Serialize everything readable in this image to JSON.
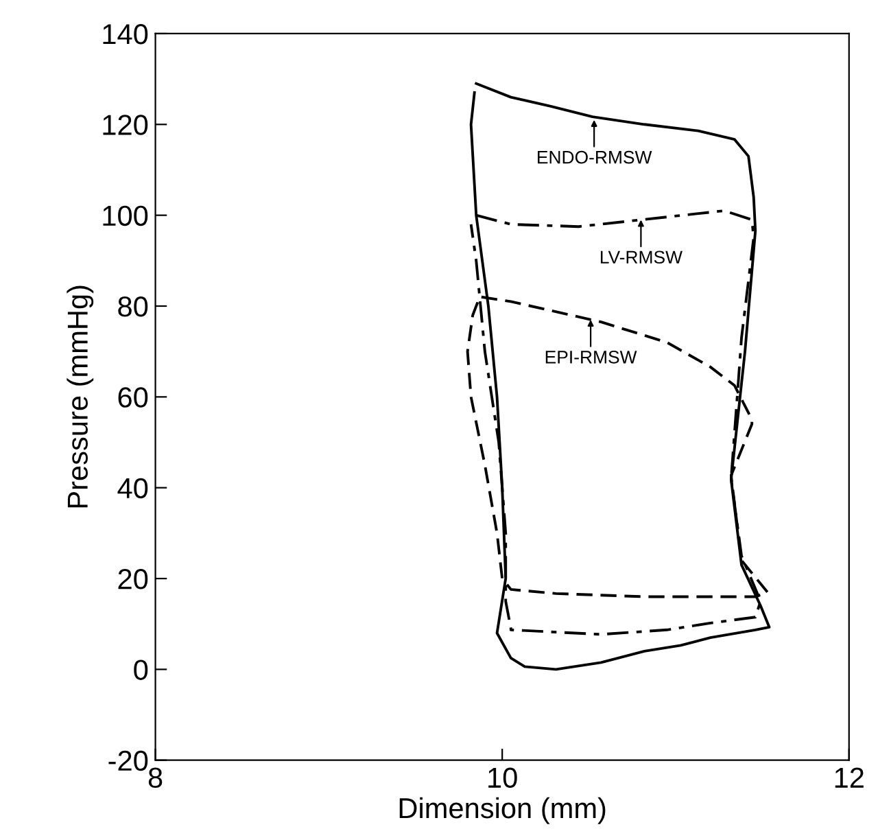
{
  "chart_data": {
    "type": "line",
    "xlabel": "Dimension (mm)",
    "ylabel": "Pressure (mmHg)",
    "xlim": [
      8,
      12
    ],
    "xticks": [
      8,
      10,
      12
    ],
    "ylim": [
      -20,
      140
    ],
    "yticks": [
      -20,
      0,
      20,
      40,
      60,
      80,
      100,
      120,
      140
    ],
    "grid": false,
    "marker": "none",
    "series": [
      {
        "color": "#000000",
        "line_style": "solid",
        "x": [
          9.85,
          10.05,
          10.28,
          10.52,
          10.82,
          11.13,
          11.34,
          11.42,
          11.45,
          11.46,
          11.4,
          11.32,
          11.38,
          11.49,
          11.54,
          11.46,
          11.2,
          11.03,
          10.82,
          10.57,
          10.31,
          10.13,
          10.05,
          9.97,
          10.02,
          10.0,
          9.97,
          9.92,
          9.85,
          9.82,
          9.84
        ],
        "values": [
          129,
          126,
          124,
          121.7,
          120,
          118.6,
          116.7,
          113,
          104,
          96.6,
          70,
          41.8,
          23,
          14,
          9.3,
          8.7,
          7,
          5.3,
          4,
          1.5,
          0,
          0.6,
          2.5,
          8,
          20,
          40,
          60,
          80,
          100,
          120,
          127
        ]
      },
      {
        "color": "#000000",
        "line_style": "dashdot",
        "x": [
          9.85,
          10.05,
          10.44,
          10.8,
          11.28,
          11.44,
          11.45,
          11.38,
          11.36,
          11.32,
          11.38,
          11.49,
          11.46,
          11.2,
          10.95,
          10.57,
          10.05,
          10.05,
          10.02,
          10.02,
          9.98,
          9.9,
          9.85,
          9.82
        ],
        "values": [
          100,
          98,
          97.5,
          99,
          101,
          99,
          95,
          73,
          62.5,
          42,
          25,
          15,
          11.5,
          10.2,
          8.7,
          7.7,
          8.7,
          9,
          15,
          30,
          50,
          70,
          90,
          98
        ]
      },
      {
        "color": "#000000",
        "line_style": "dashed",
        "x": [
          9.88,
          10.05,
          10.57,
          10.95,
          11.2,
          11.34,
          11.44,
          11.44,
          11.32,
          11.38,
          11.53,
          11.46,
          10.82,
          10.31,
          10.05,
          10.0,
          9.97,
          9.9,
          9.82,
          9.8,
          9.83,
          9.86
        ],
        "values": [
          82,
          81,
          76.5,
          72,
          66.6,
          62.5,
          55,
          54,
          42.7,
          24,
          17,
          16,
          16,
          16.7,
          17.6,
          20,
          30,
          45,
          60,
          70,
          78,
          81
        ]
      }
    ],
    "annotations": [
      {
        "text": "ENDO-RMSW",
        "x": 10.53,
        "y": 121
      },
      {
        "text": "LV-RMSW",
        "x": 10.8,
        "y": 99
      },
      {
        "text": "EPI-RMSW",
        "x": 10.51,
        "y": 77
      }
    ]
  }
}
